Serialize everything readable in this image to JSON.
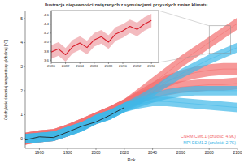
{
  "chart_data": [
    {
      "type": "line",
      "title": "Ilustracja niepewności związanych z symulacjami przyszłych zmian klimatu",
      "x_label": "Rok",
      "y_label": "Odchylenie średniej temperatury globalnej [°C]",
      "x": [
        1950,
        1960,
        1970,
        1980,
        1990,
        2000,
        2010,
        2020,
        2030,
        2040,
        2050,
        2060,
        2070,
        2080,
        2090,
        2100
      ],
      "xlim": [
        1950,
        2100
      ],
      "xticks": [
        1960,
        1980,
        2000,
        2020,
        2040,
        2060,
        2080,
        2100
      ],
      "ylim": [
        -0.4,
        5.3
      ],
      "yticks": [
        0,
        1,
        2,
        3,
        4,
        5
      ],
      "grid": false,
      "legend": "lower right",
      "series": [
        {
          "name": "CNRM CM6.1 (czułość: 4.9K)",
          "color": "#f26d6d",
          "type": "area",
          "values": [
            0.0,
            0.1,
            0.15,
            0.35,
            0.6,
            0.85,
            1.1,
            1.4,
            1.85,
            2.3,
            2.75,
            3.2,
            3.6,
            4.0,
            4.4,
            4.8
          ],
          "low": [
            -0.25,
            -0.15,
            -0.1,
            0.1,
            0.35,
            0.6,
            0.85,
            1.15,
            1.6,
            2.05,
            2.5,
            2.95,
            3.35,
            3.75,
            4.15,
            4.55
          ],
          "high": [
            0.25,
            0.35,
            0.4,
            0.6,
            0.85,
            1.1,
            1.35,
            1.65,
            2.1,
            2.55,
            3.0,
            3.45,
            3.85,
            4.25,
            4.65,
            5.05
          ]
        },
        {
          "color": "#f26d6d",
          "type": "area",
          "values": [
            0.0,
            0.1,
            0.15,
            0.35,
            0.6,
            0.85,
            1.1,
            1.4,
            1.75,
            2.1,
            2.4,
            2.6,
            2.75,
            2.85,
            2.9,
            2.9
          ],
          "low": [
            -0.25,
            -0.15,
            -0.1,
            0.1,
            0.35,
            0.6,
            0.85,
            1.15,
            1.5,
            1.85,
            2.15,
            2.35,
            2.5,
            2.6,
            2.65,
            2.65
          ],
          "high": [
            0.25,
            0.35,
            0.4,
            0.6,
            0.85,
            1.1,
            1.35,
            1.65,
            2.0,
            2.35,
            2.65,
            2.85,
            3.0,
            3.1,
            3.15,
            3.15
          ]
        },
        {
          "color": "#f26d6d",
          "type": "area",
          "values": [
            0.0,
            0.1,
            0.15,
            0.35,
            0.6,
            0.85,
            1.1,
            1.4,
            1.7,
            1.9,
            2.05,
            2.15,
            2.2,
            2.25,
            2.25,
            2.3
          ],
          "low": [
            -0.25,
            -0.15,
            -0.1,
            0.1,
            0.35,
            0.6,
            0.85,
            1.15,
            1.45,
            1.65,
            1.8,
            1.9,
            1.95,
            2.0,
            2.0,
            2.05
          ],
          "high": [
            0.25,
            0.35,
            0.4,
            0.6,
            0.85,
            1.1,
            1.35,
            1.65,
            1.95,
            2.15,
            2.3,
            2.4,
            2.45,
            2.5,
            2.5,
            2.55
          ]
        },
        {
          "name": "MPI ESM1.2 (czułość: 2.7K)",
          "color": "#3fb8e8",
          "type": "area",
          "values": [
            0.0,
            0.05,
            0.1,
            0.3,
            0.5,
            0.8,
            1.0,
            1.3,
            1.6,
            1.95,
            2.35,
            2.7,
            3.0,
            3.3,
            3.55,
            3.8
          ],
          "low": [
            -0.2,
            -0.15,
            -0.1,
            0.1,
            0.3,
            0.6,
            0.8,
            1.1,
            1.4,
            1.75,
            2.15,
            2.5,
            2.8,
            3.1,
            3.35,
            3.6
          ],
          "high": [
            0.2,
            0.25,
            0.3,
            0.5,
            0.7,
            1.0,
            1.2,
            1.5,
            1.8,
            2.15,
            2.55,
            2.9,
            3.2,
            3.5,
            3.75,
            4.0
          ]
        },
        {
          "color": "#3fb8e8",
          "type": "area",
          "values": [
            0.0,
            0.05,
            0.1,
            0.3,
            0.5,
            0.8,
            1.0,
            1.3,
            1.5,
            1.7,
            1.85,
            1.95,
            2.0,
            2.0,
            2.0,
            2.0
          ],
          "low": [
            -0.2,
            -0.15,
            -0.1,
            0.1,
            0.3,
            0.6,
            0.8,
            1.1,
            1.3,
            1.5,
            1.65,
            1.75,
            1.8,
            1.8,
            1.8,
            1.8
          ],
          "high": [
            0.2,
            0.25,
            0.3,
            0.5,
            0.7,
            1.0,
            1.2,
            1.5,
            1.7,
            1.9,
            2.05,
            2.15,
            2.2,
            2.2,
            2.2,
            2.2
          ]
        },
        {
          "color": "#3fb8e8",
          "type": "area",
          "values": [
            0.0,
            0.05,
            0.1,
            0.3,
            0.5,
            0.8,
            1.0,
            1.3,
            1.45,
            1.55,
            1.55,
            1.5,
            1.45,
            1.4,
            1.35,
            1.3
          ],
          "low": [
            -0.2,
            -0.15,
            -0.1,
            0.1,
            0.3,
            0.6,
            0.8,
            1.1,
            1.25,
            1.35,
            1.35,
            1.3,
            1.25,
            1.2,
            1.15,
            1.1
          ],
          "high": [
            0.2,
            0.25,
            0.3,
            0.5,
            0.7,
            1.0,
            1.2,
            1.5,
            1.65,
            1.75,
            1.75,
            1.7,
            1.65,
            1.6,
            1.55,
            1.5
          ]
        },
        {
          "color": "#222222",
          "type": "line",
          "values": [
            -0.05,
            0.08,
            0.05,
            0.28,
            0.52,
            0.7,
            0.98,
            1.3,
            null,
            null,
            null,
            null,
            null,
            null,
            null,
            null
          ]
        }
      ]
    },
    {
      "type": "line",
      "x": [
        2080,
        2081,
        2082,
        2083,
        2084,
        2085,
        2086,
        2087,
        2088,
        2089,
        2090,
        2091,
        2092,
        2093,
        2094
      ],
      "xlim": [
        2080,
        2095
      ],
      "xticks": [
        2080,
        2082,
        2084,
        2086,
        2088,
        2090,
        2092,
        2094
      ],
      "ylim": [
        3.55,
        4.7
      ],
      "yticks": [
        3.6,
        3.8,
        {
          "value": 4,
          "label": "4.0"
        },
        4.2,
        4.4,
        4.6
      ],
      "grid": false,
      "series": [
        {
          "color": "#d81e2c",
          "type": "area",
          "values": [
            3.78,
            3.85,
            3.72,
            3.9,
            3.98,
            3.88,
            4.05,
            4.12,
            4.0,
            4.18,
            4.25,
            4.35,
            4.28,
            4.4,
            4.48
          ],
          "low": [
            3.63,
            3.7,
            3.57,
            3.75,
            3.83,
            3.73,
            3.9,
            3.97,
            3.85,
            4.03,
            4.1,
            4.2,
            4.13,
            4.25,
            4.33
          ],
          "high": [
            3.93,
            4.0,
            3.87,
            4.05,
            4.13,
            4.03,
            4.2,
            4.27,
            4.15,
            4.33,
            4.4,
            4.5,
            4.43,
            4.55,
            4.63
          ]
        }
      ]
    }
  ]
}
